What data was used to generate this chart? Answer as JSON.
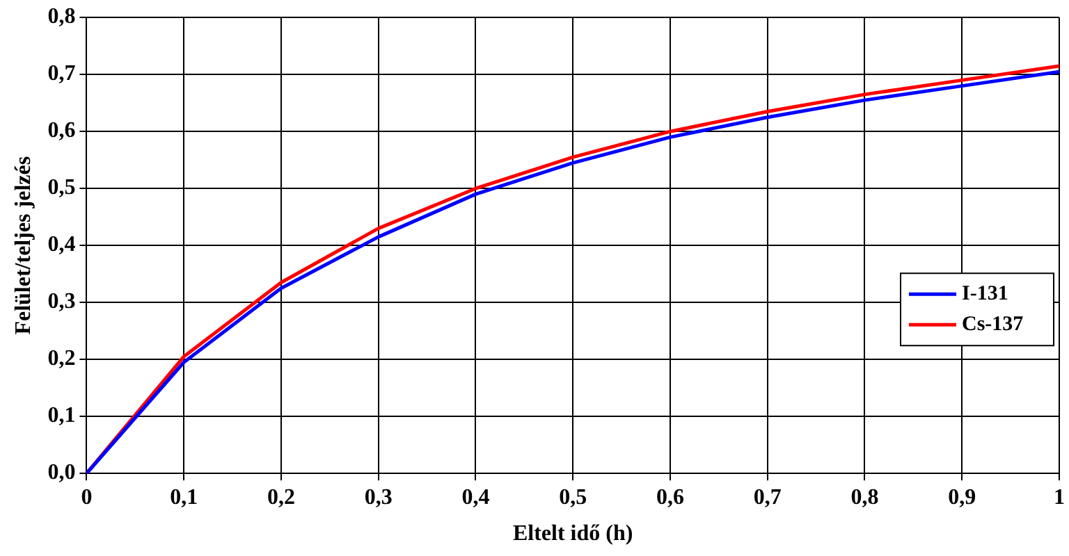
{
  "chart_data": {
    "type": "line",
    "xlabel": "Eltelt idő (h)",
    "ylabel": "Felület/teljes jelzés",
    "x": [
      0,
      0.1,
      0.2,
      0.3,
      0.4,
      0.5,
      0.6,
      0.7,
      0.8,
      0.9,
      1
    ],
    "series": [
      {
        "name": "I-131",
        "color": "#0000ff",
        "values": [
          0,
          0.195,
          0.325,
          0.415,
          0.49,
          0.545,
          0.59,
          0.625,
          0.655,
          0.68,
          0.705
        ]
      },
      {
        "name": "Cs-137",
        "color": "#ff0000",
        "values": [
          0,
          0.205,
          0.335,
          0.43,
          0.5,
          0.555,
          0.6,
          0.635,
          0.665,
          0.69,
          0.715
        ]
      }
    ],
    "xlim": [
      0,
      1
    ],
    "xticks": [
      0,
      {
        "value": 0.1,
        "label": "0,1"
      },
      {
        "value": 0.2,
        "label": "0,2"
      },
      {
        "value": 0.3,
        "label": "0,3"
      },
      {
        "value": 0.4,
        "label": "0,4"
      },
      {
        "value": 0.5,
        "label": "0,5"
      },
      {
        "value": 0.6,
        "label": "0,6"
      },
      {
        "value": 0.7,
        "label": "0,7"
      },
      {
        "value": 0.8,
        "label": "0,8"
      },
      {
        "value": 0.9,
        "label": "0,9"
      },
      1
    ],
    "ylim": [
      0,
      0.8
    ],
    "yticks": [
      {
        "value": 0,
        "label": "0,0"
      },
      {
        "value": 0.1,
        "label": "0,1"
      },
      {
        "value": 0.2,
        "label": "0,2"
      },
      {
        "value": 0.3,
        "label": "0,3"
      },
      {
        "value": 0.4,
        "label": "0,4"
      },
      {
        "value": 0.5,
        "label": "0,5"
      },
      {
        "value": 0.6,
        "label": "0,6"
      },
      {
        "value": 0.7,
        "label": "0,7"
      },
      {
        "value": 0.8,
        "label": "0,8"
      }
    ],
    "grid": true,
    "legend": "right",
    "marker": "none",
    "line_style": "solid"
  }
}
